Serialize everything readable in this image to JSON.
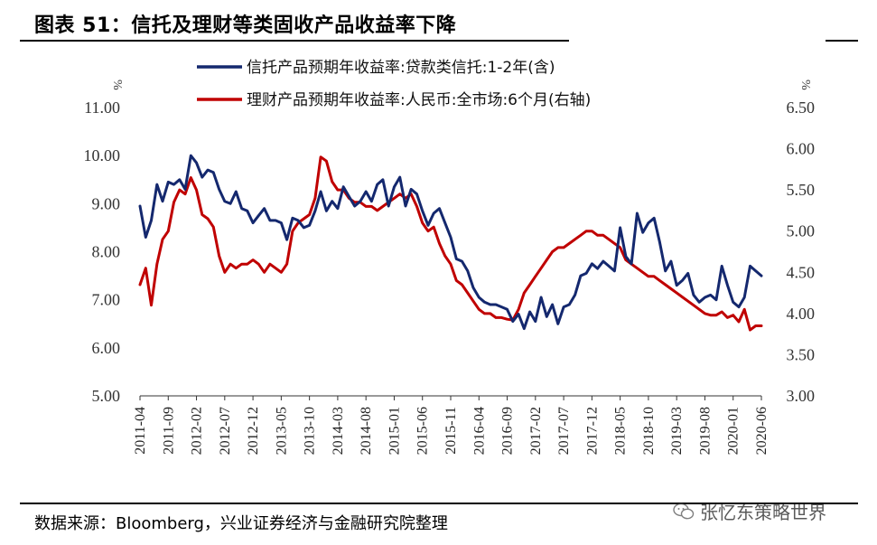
{
  "header": {
    "title": "图表 51：信托及理财等类固收产品收益率下降"
  },
  "footer": {
    "source": "数据来源：Bloomberg，兴业证券经济与金融研究院整理",
    "watermark": "张忆东策略世界"
  },
  "colors": {
    "trust": "#14286e",
    "wealth": "#c00000"
  },
  "chart_data": {
    "type": "line",
    "title": "图表 51：信托及理财等类固收产品收益率下降",
    "left_axis": {
      "unit": "%",
      "min": 5.0,
      "max": 11.0,
      "ticks": [
        "5.00",
        "6.00",
        "7.00",
        "8.00",
        "9.00",
        "10.00",
        "11.00"
      ]
    },
    "right_axis": {
      "unit": "%",
      "min": 3.0,
      "max": 6.5,
      "ticks": [
        "3.00",
        "3.50",
        "4.00",
        "4.50",
        "5.00",
        "5.50",
        "6.00",
        "6.50"
      ]
    },
    "x_range": [
      "2011-04",
      "2020-06"
    ],
    "x_ticks": [
      "2011-04",
      "2011-09",
      "2012-02",
      "2012-07",
      "2012-12",
      "2013-05",
      "2013-10",
      "2014-03",
      "2014-08",
      "2015-01",
      "2015-06",
      "2015-11",
      "2016-04",
      "2016-09",
      "2017-02",
      "2017-07",
      "2017-12",
      "2018-05",
      "2018-10",
      "2019-03",
      "2019-08",
      "2020-01",
      "2020-06"
    ],
    "legend_position": "top",
    "series": [
      {
        "name": "信托产品预期年收益率:贷款类信托:1-2年(含)",
        "axis": "left",
        "color_key": "trust",
        "points": [
          [
            "2011-04",
            8.95
          ],
          [
            "2011-05",
            8.3
          ],
          [
            "2011-06",
            8.65
          ],
          [
            "2011-07",
            9.4
          ],
          [
            "2011-08",
            9.05
          ],
          [
            "2011-09",
            9.45
          ],
          [
            "2011-10",
            9.4
          ],
          [
            "2011-11",
            9.5
          ],
          [
            "2011-12",
            9.3
          ],
          [
            "2012-01",
            10.0
          ],
          [
            "2012-02",
            9.85
          ],
          [
            "2012-03",
            9.55
          ],
          [
            "2012-04",
            9.7
          ],
          [
            "2012-05",
            9.65
          ],
          [
            "2012-06",
            9.3
          ],
          [
            "2012-07",
            9.05
          ],
          [
            "2012-08",
            9.0
          ],
          [
            "2012-09",
            9.25
          ],
          [
            "2012-10",
            8.9
          ],
          [
            "2012-11",
            8.85
          ],
          [
            "2012-12",
            8.6
          ],
          [
            "2013-01",
            8.75
          ],
          [
            "2013-02",
            8.9
          ],
          [
            "2013-03",
            8.65
          ],
          [
            "2013-04",
            8.65
          ],
          [
            "2013-05",
            8.6
          ],
          [
            "2013-06",
            8.25
          ],
          [
            "2013-07",
            8.7
          ],
          [
            "2013-08",
            8.65
          ],
          [
            "2013-09",
            8.5
          ],
          [
            "2013-10",
            8.55
          ],
          [
            "2013-11",
            8.85
          ],
          [
            "2013-12",
            9.25
          ],
          [
            "2014-01",
            8.85
          ],
          [
            "2014-02",
            9.05
          ],
          [
            "2014-03",
            8.9
          ],
          [
            "2014-04",
            9.35
          ],
          [
            "2014-05",
            9.15
          ],
          [
            "2014-06",
            8.95
          ],
          [
            "2014-07",
            9.05
          ],
          [
            "2014-08",
            9.25
          ],
          [
            "2014-09",
            9.05
          ],
          [
            "2014-10",
            9.4
          ],
          [
            "2014-11",
            9.5
          ],
          [
            "2014-12",
            8.95
          ],
          [
            "2015-01",
            9.35
          ],
          [
            "2015-02",
            9.55
          ],
          [
            "2015-03",
            8.95
          ],
          [
            "2015-04",
            9.3
          ],
          [
            "2015-05",
            9.2
          ],
          [
            "2015-06",
            8.85
          ],
          [
            "2015-07",
            8.55
          ],
          [
            "2015-08",
            8.8
          ],
          [
            "2015-09",
            8.9
          ],
          [
            "2015-10",
            8.6
          ],
          [
            "2015-11",
            8.3
          ],
          [
            "2015-12",
            7.85
          ],
          [
            "2016-01",
            7.8
          ],
          [
            "2016-02",
            7.6
          ],
          [
            "2016-03",
            7.25
          ],
          [
            "2016-04",
            7.05
          ],
          [
            "2016-05",
            6.95
          ],
          [
            "2016-06",
            6.9
          ],
          [
            "2016-07",
            6.9
          ],
          [
            "2016-08",
            6.85
          ],
          [
            "2016-09",
            6.8
          ],
          [
            "2016-10",
            6.55
          ],
          [
            "2016-11",
            6.7
          ],
          [
            "2016-12",
            6.4
          ],
          [
            "2017-01",
            6.75
          ],
          [
            "2017-02",
            6.55
          ],
          [
            "2017-03",
            7.05
          ],
          [
            "2017-04",
            6.65
          ],
          [
            "2017-05",
            6.9
          ],
          [
            "2017-06",
            6.5
          ],
          [
            "2017-07",
            6.85
          ],
          [
            "2017-08",
            6.9
          ],
          [
            "2017-09",
            7.1
          ],
          [
            "2017-10",
            7.5
          ],
          [
            "2017-11",
            7.55
          ],
          [
            "2017-12",
            7.75
          ],
          [
            "2018-01",
            7.65
          ],
          [
            "2018-02",
            7.8
          ],
          [
            "2018-03",
            7.7
          ],
          [
            "2018-04",
            7.6
          ],
          [
            "2018-05",
            8.5
          ],
          [
            "2018-06",
            7.9
          ],
          [
            "2018-07",
            7.75
          ],
          [
            "2018-08",
            8.8
          ],
          [
            "2018-09",
            8.4
          ],
          [
            "2018-10",
            8.6
          ],
          [
            "2018-11",
            8.7
          ],
          [
            "2018-12",
            8.2
          ],
          [
            "2019-01",
            7.6
          ],
          [
            "2019-02",
            7.8
          ],
          [
            "2019-03",
            7.3
          ],
          [
            "2019-04",
            7.4
          ],
          [
            "2019-05",
            7.55
          ],
          [
            "2019-06",
            7.1
          ],
          [
            "2019-07",
            6.95
          ],
          [
            "2019-08",
            7.05
          ],
          [
            "2019-09",
            7.1
          ],
          [
            "2019-10",
            7.0
          ],
          [
            "2019-11",
            7.7
          ],
          [
            "2019-12",
            7.3
          ],
          [
            "2020-01",
            6.95
          ],
          [
            "2020-02",
            6.85
          ],
          [
            "2020-03",
            7.05
          ],
          [
            "2020-04",
            7.7
          ],
          [
            "2020-05",
            7.6
          ],
          [
            "2020-06",
            7.5
          ]
        ]
      },
      {
        "name": "理财产品预期年收益率:人民币:全市场:6个月(右轴)",
        "axis": "right",
        "color_key": "wealth",
        "points": [
          [
            "2011-04",
            4.35
          ],
          [
            "2011-05",
            4.55
          ],
          [
            "2011-06",
            4.1
          ],
          [
            "2011-07",
            4.6
          ],
          [
            "2011-08",
            4.9
          ],
          [
            "2011-09",
            5.0
          ],
          [
            "2011-10",
            5.35
          ],
          [
            "2011-11",
            5.5
          ],
          [
            "2011-12",
            5.45
          ],
          [
            "2012-01",
            5.65
          ],
          [
            "2012-02",
            5.5
          ],
          [
            "2012-03",
            5.2
          ],
          [
            "2012-04",
            5.15
          ],
          [
            "2012-05",
            5.05
          ],
          [
            "2012-06",
            4.7
          ],
          [
            "2012-07",
            4.5
          ],
          [
            "2012-08",
            4.6
          ],
          [
            "2012-09",
            4.55
          ],
          [
            "2012-10",
            4.6
          ],
          [
            "2012-11",
            4.6
          ],
          [
            "2012-12",
            4.65
          ],
          [
            "2013-01",
            4.6
          ],
          [
            "2013-02",
            4.5
          ],
          [
            "2013-03",
            4.6
          ],
          [
            "2013-04",
            4.55
          ],
          [
            "2013-05",
            4.5
          ],
          [
            "2013-06",
            4.6
          ],
          [
            "2013-07",
            5.0
          ],
          [
            "2013-08",
            5.1
          ],
          [
            "2013-09",
            5.15
          ],
          [
            "2013-10",
            5.2
          ],
          [
            "2013-11",
            5.4
          ],
          [
            "2013-12",
            5.9
          ],
          [
            "2014-01",
            5.85
          ],
          [
            "2014-02",
            5.6
          ],
          [
            "2014-03",
            5.5
          ],
          [
            "2014-04",
            5.5
          ],
          [
            "2014-05",
            5.4
          ],
          [
            "2014-06",
            5.35
          ],
          [
            "2014-07",
            5.35
          ],
          [
            "2014-08",
            5.3
          ],
          [
            "2014-09",
            5.3
          ],
          [
            "2014-10",
            5.25
          ],
          [
            "2014-11",
            5.3
          ],
          [
            "2014-12",
            5.35
          ],
          [
            "2015-01",
            5.4
          ],
          [
            "2015-02",
            5.45
          ],
          [
            "2015-03",
            5.4
          ],
          [
            "2015-04",
            5.45
          ],
          [
            "2015-05",
            5.3
          ],
          [
            "2015-06",
            5.1
          ],
          [
            "2015-07",
            5.0
          ],
          [
            "2015-08",
            5.05
          ],
          [
            "2015-09",
            4.85
          ],
          [
            "2015-10",
            4.7
          ],
          [
            "2015-11",
            4.6
          ],
          [
            "2015-12",
            4.4
          ],
          [
            "2016-01",
            4.35
          ],
          [
            "2016-02",
            4.25
          ],
          [
            "2016-03",
            4.15
          ],
          [
            "2016-04",
            4.05
          ],
          [
            "2016-05",
            4.0
          ],
          [
            "2016-06",
            4.0
          ],
          [
            "2016-07",
            3.95
          ],
          [
            "2016-08",
            3.95
          ],
          [
            "2016-09",
            3.93
          ],
          [
            "2016-10",
            3.92
          ],
          [
            "2016-11",
            4.05
          ],
          [
            "2016-12",
            4.25
          ],
          [
            "2017-01",
            4.35
          ],
          [
            "2017-02",
            4.45
          ],
          [
            "2017-03",
            4.55
          ],
          [
            "2017-04",
            4.65
          ],
          [
            "2017-05",
            4.75
          ],
          [
            "2017-06",
            4.8
          ],
          [
            "2017-07",
            4.8
          ],
          [
            "2017-08",
            4.85
          ],
          [
            "2017-09",
            4.9
          ],
          [
            "2017-10",
            4.95
          ],
          [
            "2017-11",
            5.0
          ],
          [
            "2017-12",
            5.0
          ],
          [
            "2018-01",
            4.95
          ],
          [
            "2018-02",
            4.95
          ],
          [
            "2018-03",
            4.9
          ],
          [
            "2018-04",
            4.85
          ],
          [
            "2018-05",
            4.8
          ],
          [
            "2018-06",
            4.65
          ],
          [
            "2018-07",
            4.6
          ],
          [
            "2018-08",
            4.55
          ],
          [
            "2018-09",
            4.5
          ],
          [
            "2018-10",
            4.45
          ],
          [
            "2018-11",
            4.45
          ],
          [
            "2018-12",
            4.4
          ],
          [
            "2019-01",
            4.35
          ],
          [
            "2019-02",
            4.3
          ],
          [
            "2019-03",
            4.25
          ],
          [
            "2019-04",
            4.2
          ],
          [
            "2019-05",
            4.15
          ],
          [
            "2019-06",
            4.1
          ],
          [
            "2019-07",
            4.05
          ],
          [
            "2019-08",
            4.0
          ],
          [
            "2019-09",
            3.98
          ],
          [
            "2019-10",
            3.98
          ],
          [
            "2019-11",
            4.02
          ],
          [
            "2019-12",
            3.95
          ],
          [
            "2020-01",
            3.98
          ],
          [
            "2020-02",
            3.9
          ],
          [
            "2020-03",
            4.05
          ],
          [
            "2020-04",
            3.8
          ],
          [
            "2020-05",
            3.85
          ],
          [
            "2020-06",
            3.85
          ]
        ]
      }
    ]
  }
}
